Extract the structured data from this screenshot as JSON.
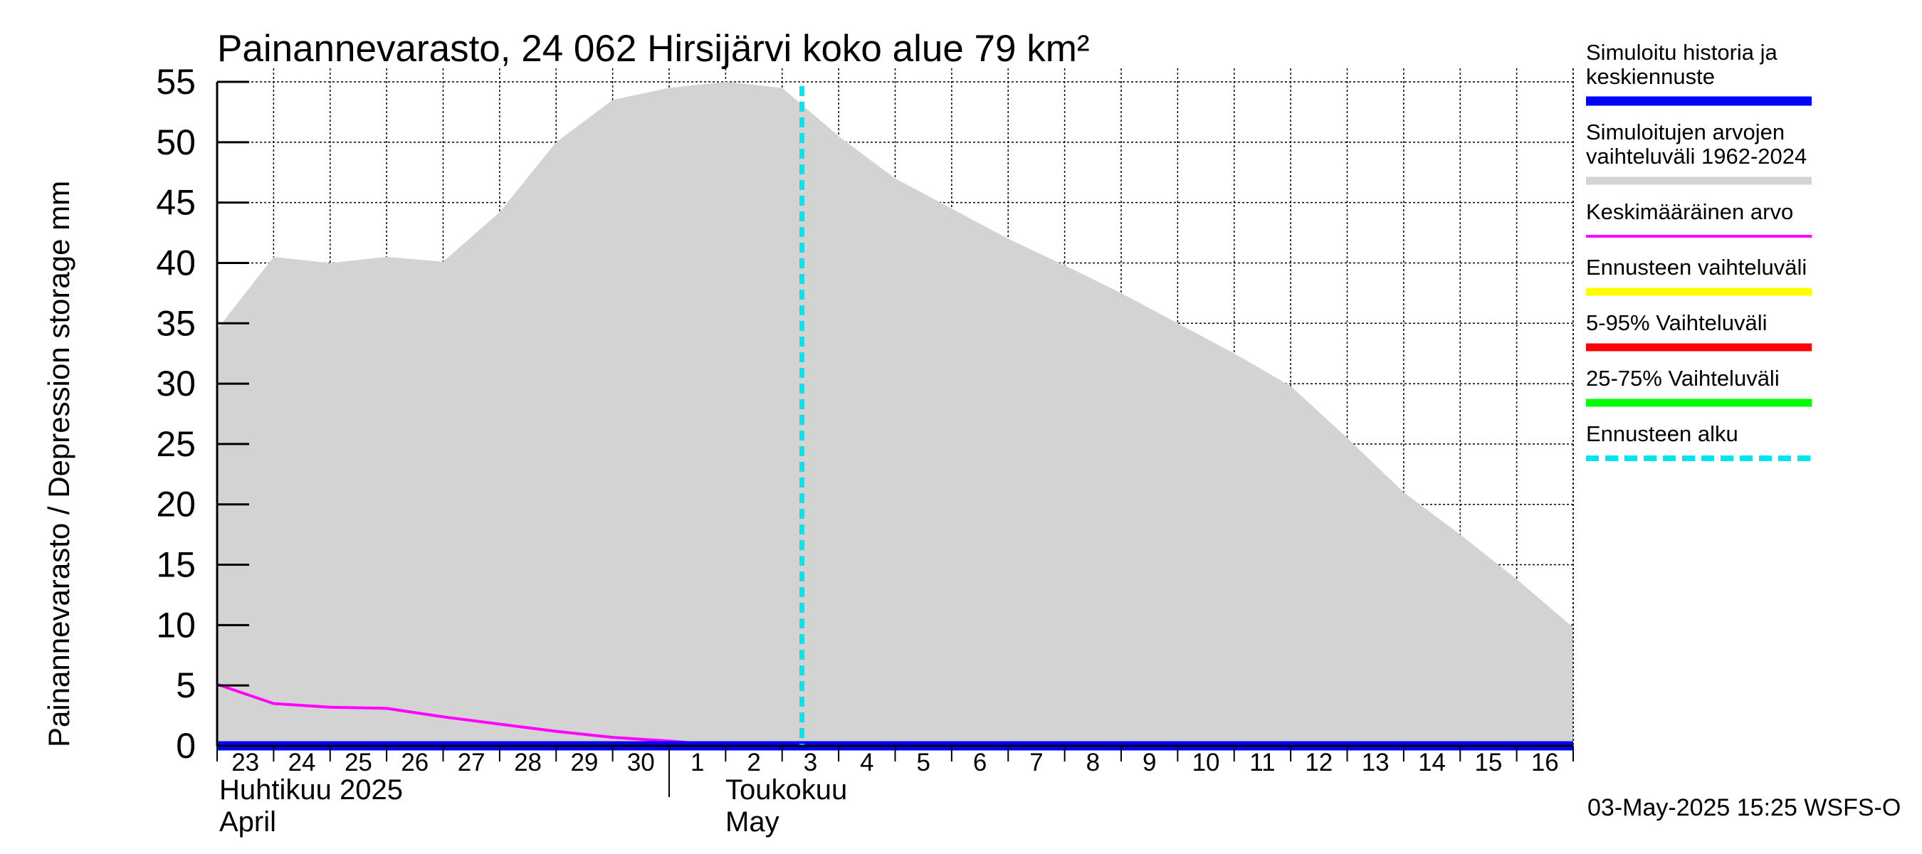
{
  "chart_data": {
    "type": "area",
    "title": "Painannevarasto, 24 062 Hirsijärvi koko alue 79 km²",
    "ylabel": "Painannevarasto / Depression storage    mm",
    "xlabel": "",
    "ylim": [
      0,
      55
    ],
    "yticks": [
      "0",
      "5",
      "10",
      "15",
      "20",
      "25",
      "30",
      "35",
      "40",
      "45",
      "50",
      "55"
    ],
    "grid": true,
    "x_start": "2025-04-23",
    "x_end": "2025-05-17",
    "x_tick_labels": [
      "23",
      "24",
      "25",
      "26",
      "27",
      "28",
      "29",
      "30",
      "1",
      "2",
      "3",
      "4",
      "5",
      "6",
      "7",
      "8",
      "9",
      "10",
      "11",
      "12",
      "13",
      "14",
      "15",
      "16"
    ],
    "month_labels": {
      "april_fi": "Huhtikuu  2025",
      "april_en": "April",
      "may_fi": "Toukokuu",
      "may_en": "May"
    },
    "forecast_start_day": 10.35,
    "series": [
      {
        "name": "Simuloitujen arvojen vaihteluväli 1962-2024",
        "kind": "band",
        "color": "#d3d3d3",
        "x": [
          0,
          1,
          2,
          3,
          4,
          5,
          6,
          7,
          8,
          9,
          10,
          11,
          12,
          13,
          14,
          15,
          16,
          17,
          18,
          19,
          20,
          21,
          22,
          23,
          24
        ],
        "upper": [
          34.5,
          40.5,
          40.0,
          40.5,
          40.1,
          44.2,
          50.0,
          53.5,
          54.5,
          55.0,
          54.5,
          50.5,
          47.0,
          44.5,
          42.0,
          39.8,
          37.5,
          35.0,
          32.5,
          29.8,
          25.5,
          21.0,
          17.5,
          13.8,
          9.8
        ],
        "lower": [
          0,
          0,
          0,
          0,
          0,
          0,
          0,
          0,
          0,
          0,
          0,
          0,
          0,
          0,
          0,
          0,
          0,
          0,
          0,
          0,
          0,
          0,
          0,
          0,
          0
        ]
      },
      {
        "name": "Keskimääräinen arvo",
        "kind": "line",
        "color": "#ff00ff",
        "x": [
          0,
          1,
          2,
          3,
          4,
          5,
          6,
          7,
          8,
          9,
          10,
          11,
          12,
          13,
          14,
          15,
          16,
          17,
          18,
          19,
          20,
          21,
          22,
          23,
          24
        ],
        "values": [
          5.1,
          3.5,
          3.2,
          3.1,
          2.4,
          1.8,
          1.2,
          0.7,
          0.4,
          0.0,
          0.0,
          0.0,
          0.0,
          0.0,
          0.0,
          0.0,
          0.0,
          0.0,
          0.0,
          0.0,
          0.0,
          0.0,
          0.0,
          0.0,
          0.0
        ]
      },
      {
        "name": "Simuloitu historia ja keskiennuste",
        "kind": "line",
        "color": "#0000ff",
        "x": [
          0,
          24
        ],
        "values": [
          0,
          0
        ]
      }
    ],
    "legend": [
      {
        "label": "Simuloitu historia ja keskiennuste",
        "color": "#0000ff",
        "style": "solid-thick"
      },
      {
        "label": "Simuloitujen arvojen vaihteluväli 1962-2024",
        "color": "#d3d3d3",
        "style": "solid"
      },
      {
        "label": "Keskimääräinen arvo",
        "color": "#ff00ff",
        "style": "solid-thin"
      },
      {
        "label": "Ennusteen vaihteluväli",
        "color": "#ffff00",
        "style": "solid"
      },
      {
        "label": "5-95% Vaihteluväli",
        "color": "#ff0000",
        "style": "solid"
      },
      {
        "label": "25-75% Vaihteluväli",
        "color": "#00ff00",
        "style": "solid"
      },
      {
        "label": "Ennusteen alku",
        "color": "#00e5ee",
        "style": "dashed"
      }
    ],
    "legend_position": "right",
    "footer": "03-May-2025 15:25 WSFS-O"
  }
}
